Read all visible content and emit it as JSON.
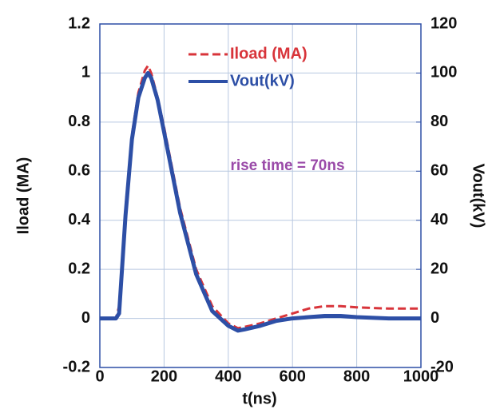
{
  "chart_data": {
    "type": "line",
    "x_label": "t(ns)",
    "y_label": "Iload (MA)",
    "y2_label": "Vout(kV)",
    "annotation": "rise time = 70ns",
    "x": [
      0,
      50,
      60,
      80,
      100,
      120,
      140,
      150,
      160,
      180,
      200,
      250,
      300,
      350,
      400,
      430,
      450,
      500,
      550,
      600,
      650,
      700,
      750,
      800,
      900,
      1000
    ],
    "series": [
      {
        "name": "Iload (MA)",
        "color": "#d8343a",
        "dash": true,
        "values": [
          0,
          0,
          0.05,
          0.45,
          0.75,
          0.92,
          1.01,
          1.03,
          1.0,
          0.9,
          0.78,
          0.45,
          0.2,
          0.05,
          -0.02,
          -0.04,
          -0.035,
          -0.02,
          0.0,
          0.02,
          0.04,
          0.05,
          0.05,
          0.045,
          0.04,
          0.04
        ]
      },
      {
        "name": "Vout(kV)",
        "color": "#2d4fa6",
        "axis": "y2",
        "values": [
          0,
          0,
          2,
          42,
          73,
          90,
          98,
          100,
          98,
          89,
          76,
          43,
          18,
          3,
          -3,
          -5,
          -4.5,
          -3,
          -1,
          0,
          0.5,
          1,
          1,
          0.5,
          0,
          0
        ]
      }
    ],
    "xlim": [
      0,
      1000
    ],
    "xticks": [
      0,
      200,
      400,
      600,
      800,
      1000
    ],
    "ylim": [
      -0.2,
      1.2
    ],
    "yticks": [
      -0.2,
      0,
      0.2,
      0.4,
      0.6,
      0.8,
      1,
      1.2
    ],
    "y2lim": [
      -20,
      120
    ],
    "y2ticks": [
      -20,
      0,
      20,
      40,
      60,
      80,
      100,
      120
    ],
    "grid": true
  }
}
